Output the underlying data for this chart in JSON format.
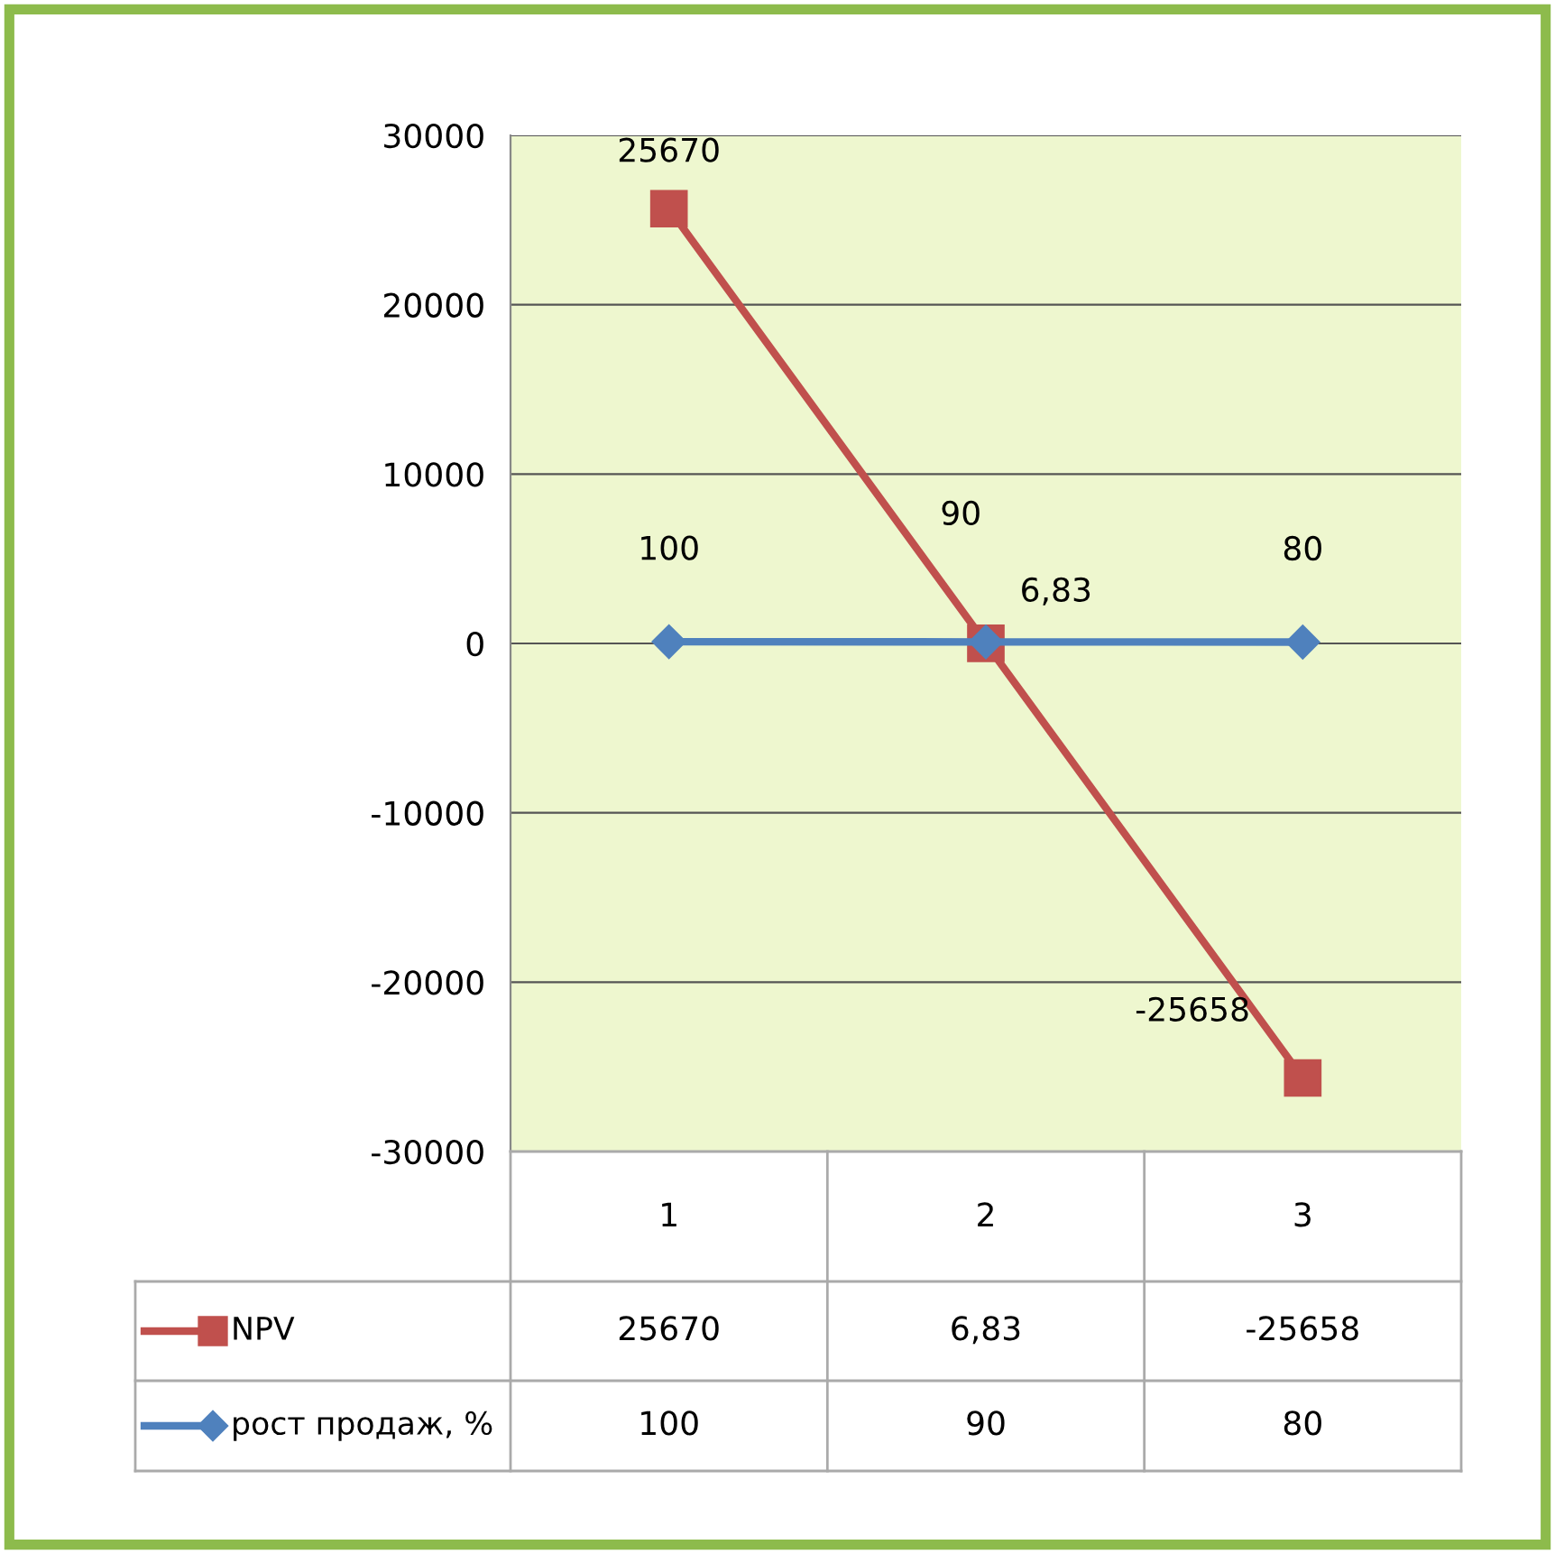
{
  "chart_data": {
    "type": "line",
    "categories": [
      "1",
      "2",
      "3"
    ],
    "series": [
      {
        "name": "NPV",
        "color": "#c0504d",
        "values": [
          25670,
          6.83,
          -25658
        ],
        "marker": "square",
        "value_labels": [
          "25670",
          "6,83",
          "-25658"
        ]
      },
      {
        "name": "рост продаж, %",
        "color": "#4f81bd",
        "values": [
          100,
          90,
          80
        ],
        "marker": "diamond",
        "value_labels": [
          "100",
          "90",
          "80"
        ]
      }
    ],
    "ylim": [
      -30000,
      30000
    ],
    "yticks": [
      -30000,
      -20000,
      -10000,
      0,
      10000,
      20000,
      30000
    ],
    "grid": "y",
    "legend": "bottom",
    "line_style": "solid"
  }
}
